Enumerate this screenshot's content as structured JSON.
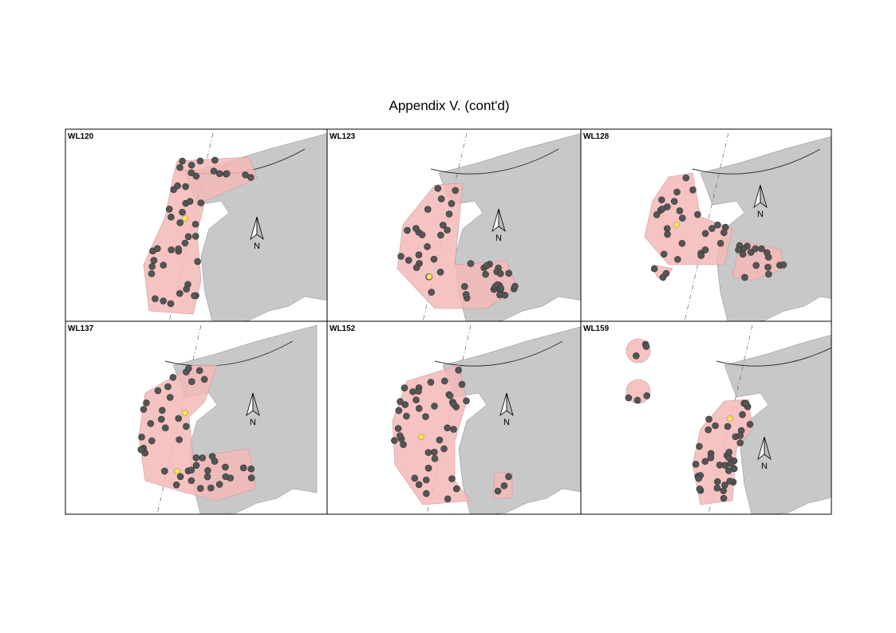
{
  "header": {
    "title": "Appendix V.  (cont'd)"
  },
  "panels": [
    {
      "label": "WL120",
      "north": "N"
    },
    {
      "label": "WL123",
      "north": "N"
    },
    {
      "label": "WL128",
      "north": "N"
    },
    {
      "label": "WL137",
      "north": "N"
    },
    {
      "label": "WL152",
      "north": "N"
    },
    {
      "label": "WL159",
      "north": "N"
    }
  ]
}
